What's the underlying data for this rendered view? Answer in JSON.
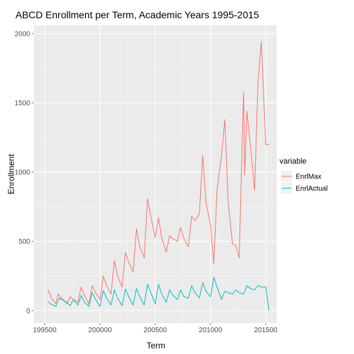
{
  "chart_data": {
    "type": "line",
    "title": "ABCD Enrollment per Term, Academic Years 1995-2015",
    "xlabel": "Term",
    "ylabel": "Enrollment",
    "xlim": [
      199400,
      201600
    ],
    "ylim": [
      -90,
      2060
    ],
    "x_ticks": [
      199500,
      200000,
      200500,
      201000,
      201500
    ],
    "y_ticks": [
      0,
      500,
      1000,
      1500,
      2000
    ],
    "grid": true,
    "legend": {
      "title": "variable",
      "position": "right"
    },
    "colors": {
      "panel_bg": "#EBEBEB",
      "grid": "#FFFFFF",
      "EnrlMax": "#F8766D",
      "EnrlActual": "#00BFC4"
    },
    "series": [
      {
        "name": "EnrlMax",
        "x": [
          199530,
          199560,
          199600,
          199620,
          199630,
          199700,
          199730,
          199760,
          199800,
          199830,
          199860,
          199900,
          199930,
          199960,
          200000,
          200030,
          200060,
          200100,
          200130,
          200160,
          200200,
          200230,
          200260,
          200300,
          200330,
          200360,
          200400,
          200430,
          200460,
          200500,
          200530,
          200560,
          200600,
          200630,
          200660,
          200700,
          200730,
          200760,
          200800,
          200830,
          200860,
          200900,
          200930,
          200960,
          201000,
          201030,
          201060,
          201100,
          201130,
          201160,
          201200,
          201230,
          201260,
          201300,
          201310,
          201330,
          201360,
          201400,
          201430,
          201460,
          201500,
          201530
        ],
        "y": [
          150,
          90,
          50,
          120,
          110,
          50,
          100,
          80,
          60,
          170,
          110,
          50,
          180,
          130,
          80,
          250,
          180,
          120,
          360,
          250,
          170,
          420,
          350,
          280,
          590,
          460,
          380,
          810,
          680,
          530,
          670,
          520,
          420,
          540,
          520,
          500,
          600,
          520,
          460,
          680,
          650,
          700,
          1120,
          780,
          620,
          340,
          880,
          1120,
          1380,
          780,
          480,
          470,
          380,
          1580,
          980,
          1440,
          1200,
          870,
          1650,
          1940,
          1200,
          1200
        ]
      },
      {
        "name": "EnrlActual",
        "x": [
          199530,
          199560,
          199600,
          199630,
          199700,
          199730,
          199760,
          199800,
          199830,
          199860,
          199900,
          199930,
          199960,
          200000,
          200030,
          200060,
          200100,
          200130,
          200160,
          200200,
          200230,
          200260,
          200300,
          200330,
          200360,
          200400,
          200430,
          200460,
          200500,
          200530,
          200560,
          200600,
          200630,
          200660,
          200700,
          200730,
          200760,
          200800,
          200830,
          200860,
          200900,
          200930,
          200960,
          201000,
          201030,
          201060,
          201100,
          201130,
          201160,
          201200,
          201230,
          201260,
          201300,
          201330,
          201360,
          201400,
          201430,
          201460,
          201500,
          201530
        ],
        "y": [
          65,
          45,
          30,
          90,
          60,
          35,
          80,
          40,
          110,
          60,
          30,
          130,
          80,
          30,
          145,
          90,
          40,
          150,
          90,
          35,
          155,
          100,
          40,
          160,
          100,
          40,
          190,
          130,
          50,
          190,
          120,
          60,
          150,
          110,
          80,
          150,
          100,
          90,
          180,
          130,
          90,
          200,
          140,
          100,
          240,
          170,
          80,
          140,
          130,
          120,
          150,
          130,
          120,
          180,
          160,
          150,
          180,
          170,
          170,
          0
        ]
      }
    ]
  }
}
